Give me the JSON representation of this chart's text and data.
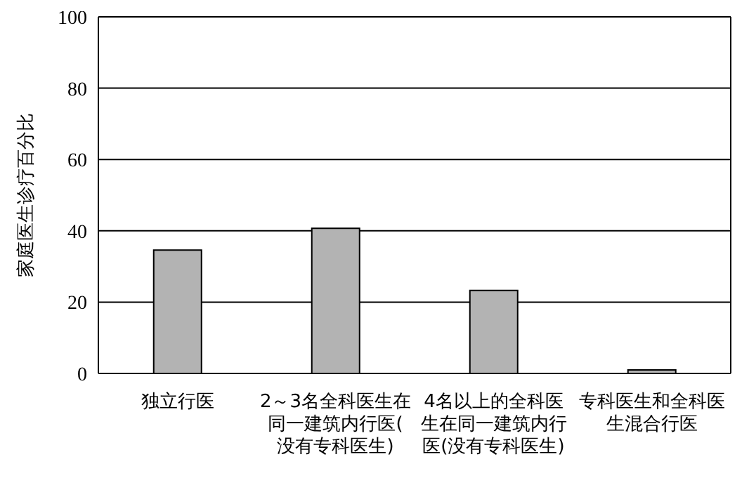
{
  "chart_data": {
    "type": "bar",
    "ylabel": "家庭医生诊疗百分比",
    "categories": [
      "独立行医",
      "2～3名全科医生在同一建筑内行医(没有专科医生)",
      "4名以上的全科医生在同一建筑内行医(没有专科医生)",
      "专科医生和全科医生混合行医"
    ],
    "values": [
      34.6,
      40.7,
      23.3,
      1
    ],
    "color": "#b3b3b3",
    "ylim": [
      0,
      100
    ],
    "yticks": [
      0,
      20,
      40,
      60,
      80,
      100
    ],
    "grid": "y"
  }
}
